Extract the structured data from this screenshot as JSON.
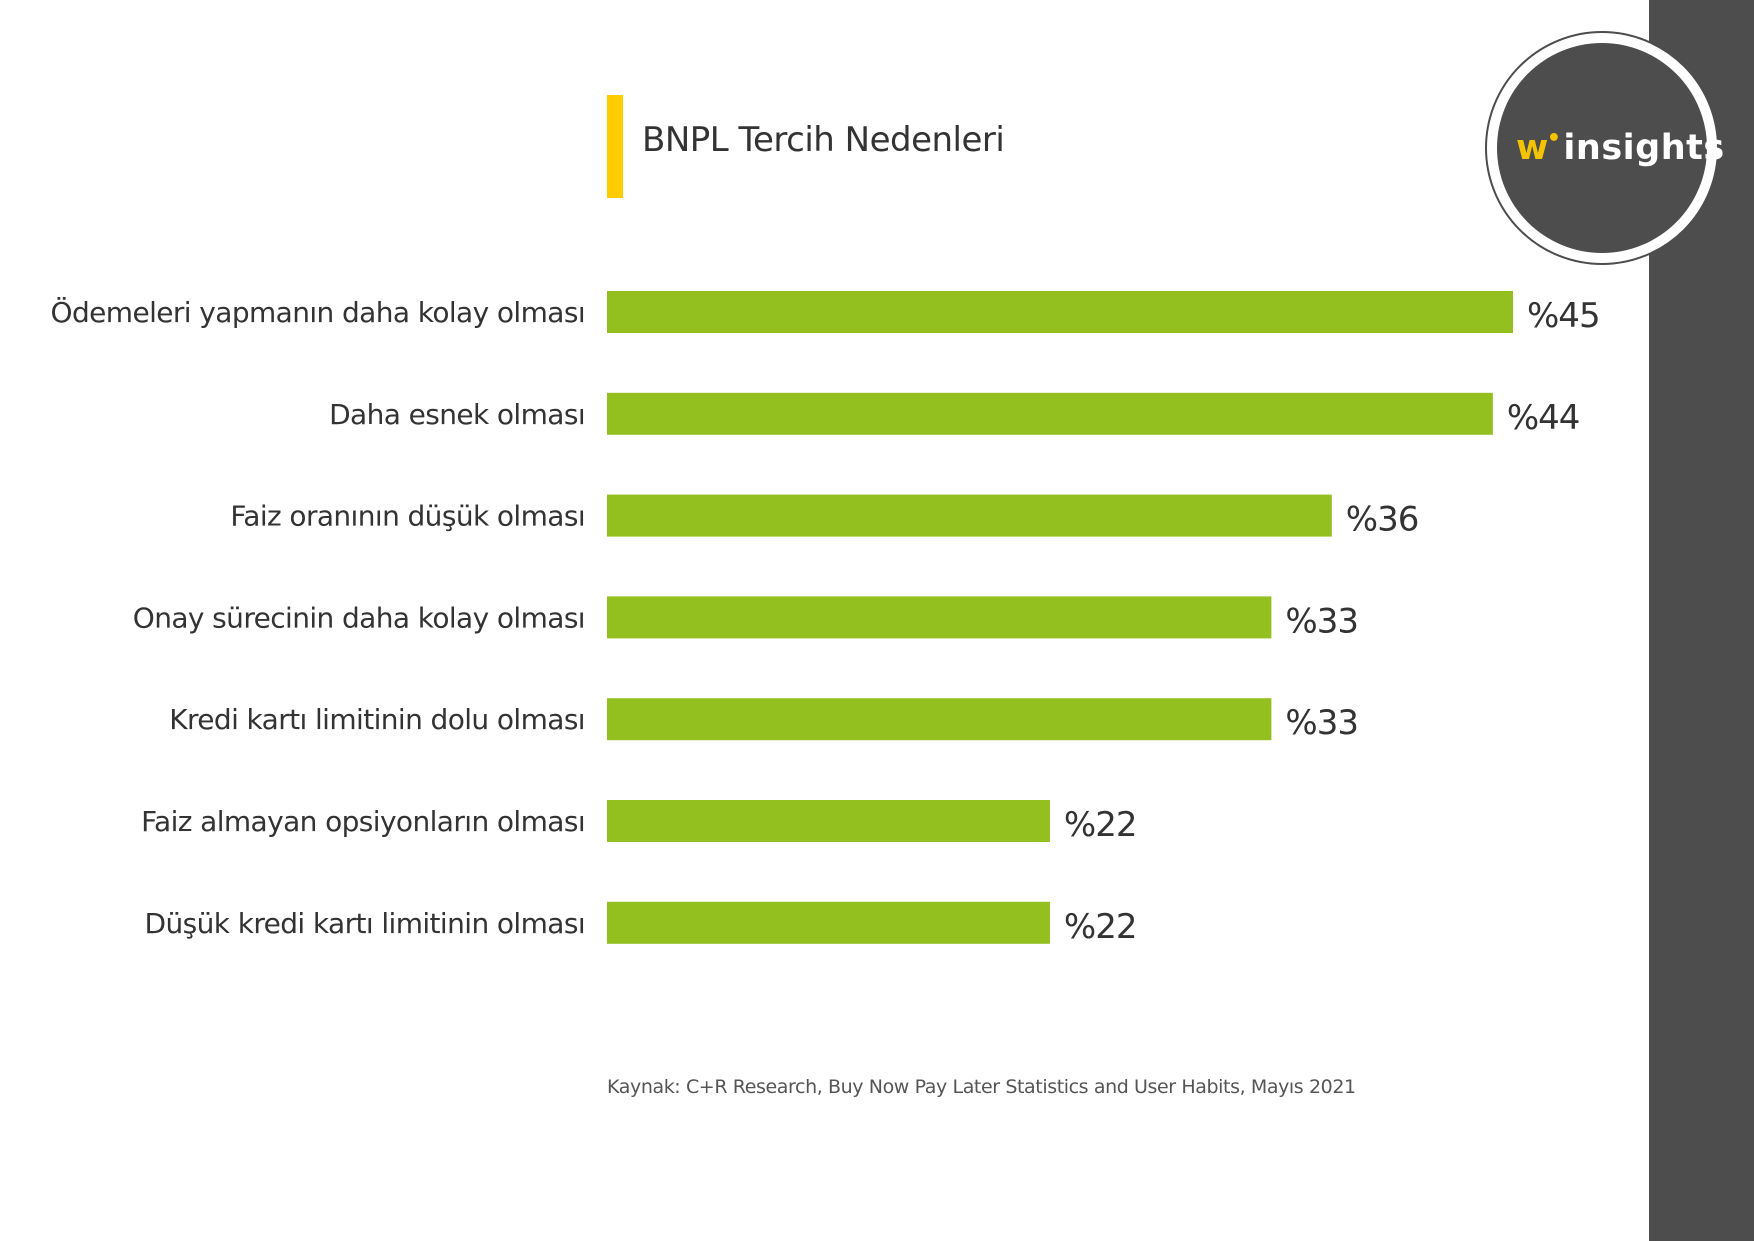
{
  "logo": {
    "w": "w",
    "dot": "•",
    "text": "insights",
    "accent_color": "#f5c400",
    "disc_color": "#4d4d4d"
  },
  "chart_data": {
    "type": "bar",
    "orientation": "horizontal",
    "title": "BNPL Tercih Nedenleri",
    "categories": [
      "Ödemeleri yapmanın daha kolay olması",
      "Daha esnek olması",
      "Faiz oranının düşük olması",
      "Onay sürecinin daha kolay olması",
      "Kredi kartı limitinin dolu olması",
      "Faiz almayan opsiyonların olması",
      "Düşük kredi kartı limitinin olması"
    ],
    "values": [
      45,
      44,
      36,
      33,
      33,
      22,
      22
    ],
    "value_labels": [
      "%45",
      "%44",
      "%36",
      "%33",
      "%33",
      "%22",
      "%22"
    ],
    "unit": "%",
    "xlim": [
      0,
      45
    ],
    "bar_color": "#93c01f",
    "title_accent_color": "#ffcc00",
    "grid": false,
    "legend": "none",
    "xlabel": "",
    "ylabel": ""
  },
  "source": "Kaynak: C+R Research, Buy Now Pay Later Statistics and User Habits,  Mayıs 2021"
}
